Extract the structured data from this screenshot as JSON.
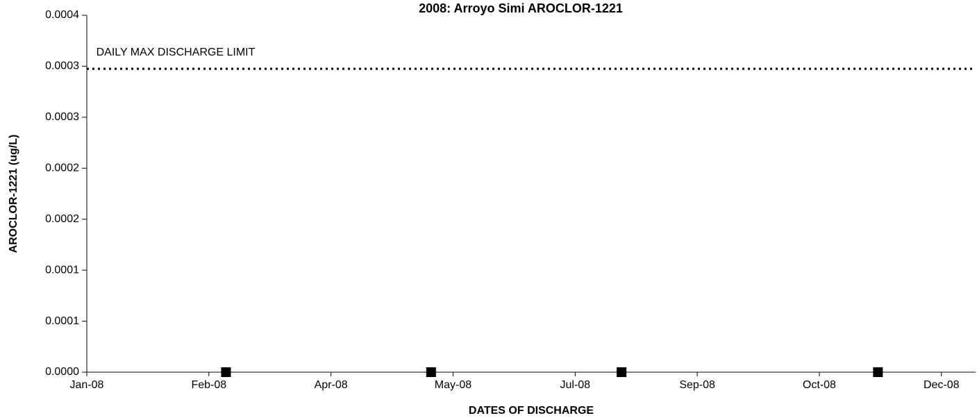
{
  "chart_data": {
    "type": "scatter",
    "title": "2008: Arroyo Simi AROCLOR-1221",
    "xlabel": "DATES OF DISCHARGE",
    "ylabel": "AROCLOR-1221 (ug/L)",
    "x": [
      "2008-02-27",
      "2008-05-21",
      "2008-08-07",
      "2008-11-20"
    ],
    "values": [
      0,
      0,
      0,
      0
    ],
    "color": "#000000",
    "xlim": [
      "2008-01-01",
      "2008-12-30"
    ],
    "xticks": [
      {
        "value": "2008-01-01",
        "label": "Jan-08"
      },
      {
        "value": "2008-02-20",
        "label": "Feb-08"
      },
      {
        "value": "2008-04-10",
        "label": "Apr-08"
      },
      {
        "value": "2008-05-30",
        "label": "May-08"
      },
      {
        "value": "2008-07-19",
        "label": "Jul-08"
      },
      {
        "value": "2008-09-07",
        "label": "Sep-08"
      },
      {
        "value": "2008-10-27",
        "label": "Oct-08"
      },
      {
        "value": "2008-12-16",
        "label": "Dec-08"
      }
    ],
    "ylim": [
      0,
      0.0004
    ],
    "yticks": [
      {
        "value": 0,
        "label": "0.0000"
      },
      {
        "value": 5.71e-05,
        "label": "0.0001"
      },
      {
        "value": 0.0001143,
        "label": "0.0001"
      },
      {
        "value": 0.0001714,
        "label": "0.0002"
      },
      {
        "value": 0.0002286,
        "label": "0.0002"
      },
      {
        "value": 0.0002857,
        "label": "0.0003"
      },
      {
        "value": 0.0003429,
        "label": "0.0003"
      },
      0.0004
    ],
    "limit": {
      "label": "DAILY MAX DISCHARGE LIMIT",
      "value": 0.00034,
      "color": "#000000"
    },
    "grid": false
  }
}
